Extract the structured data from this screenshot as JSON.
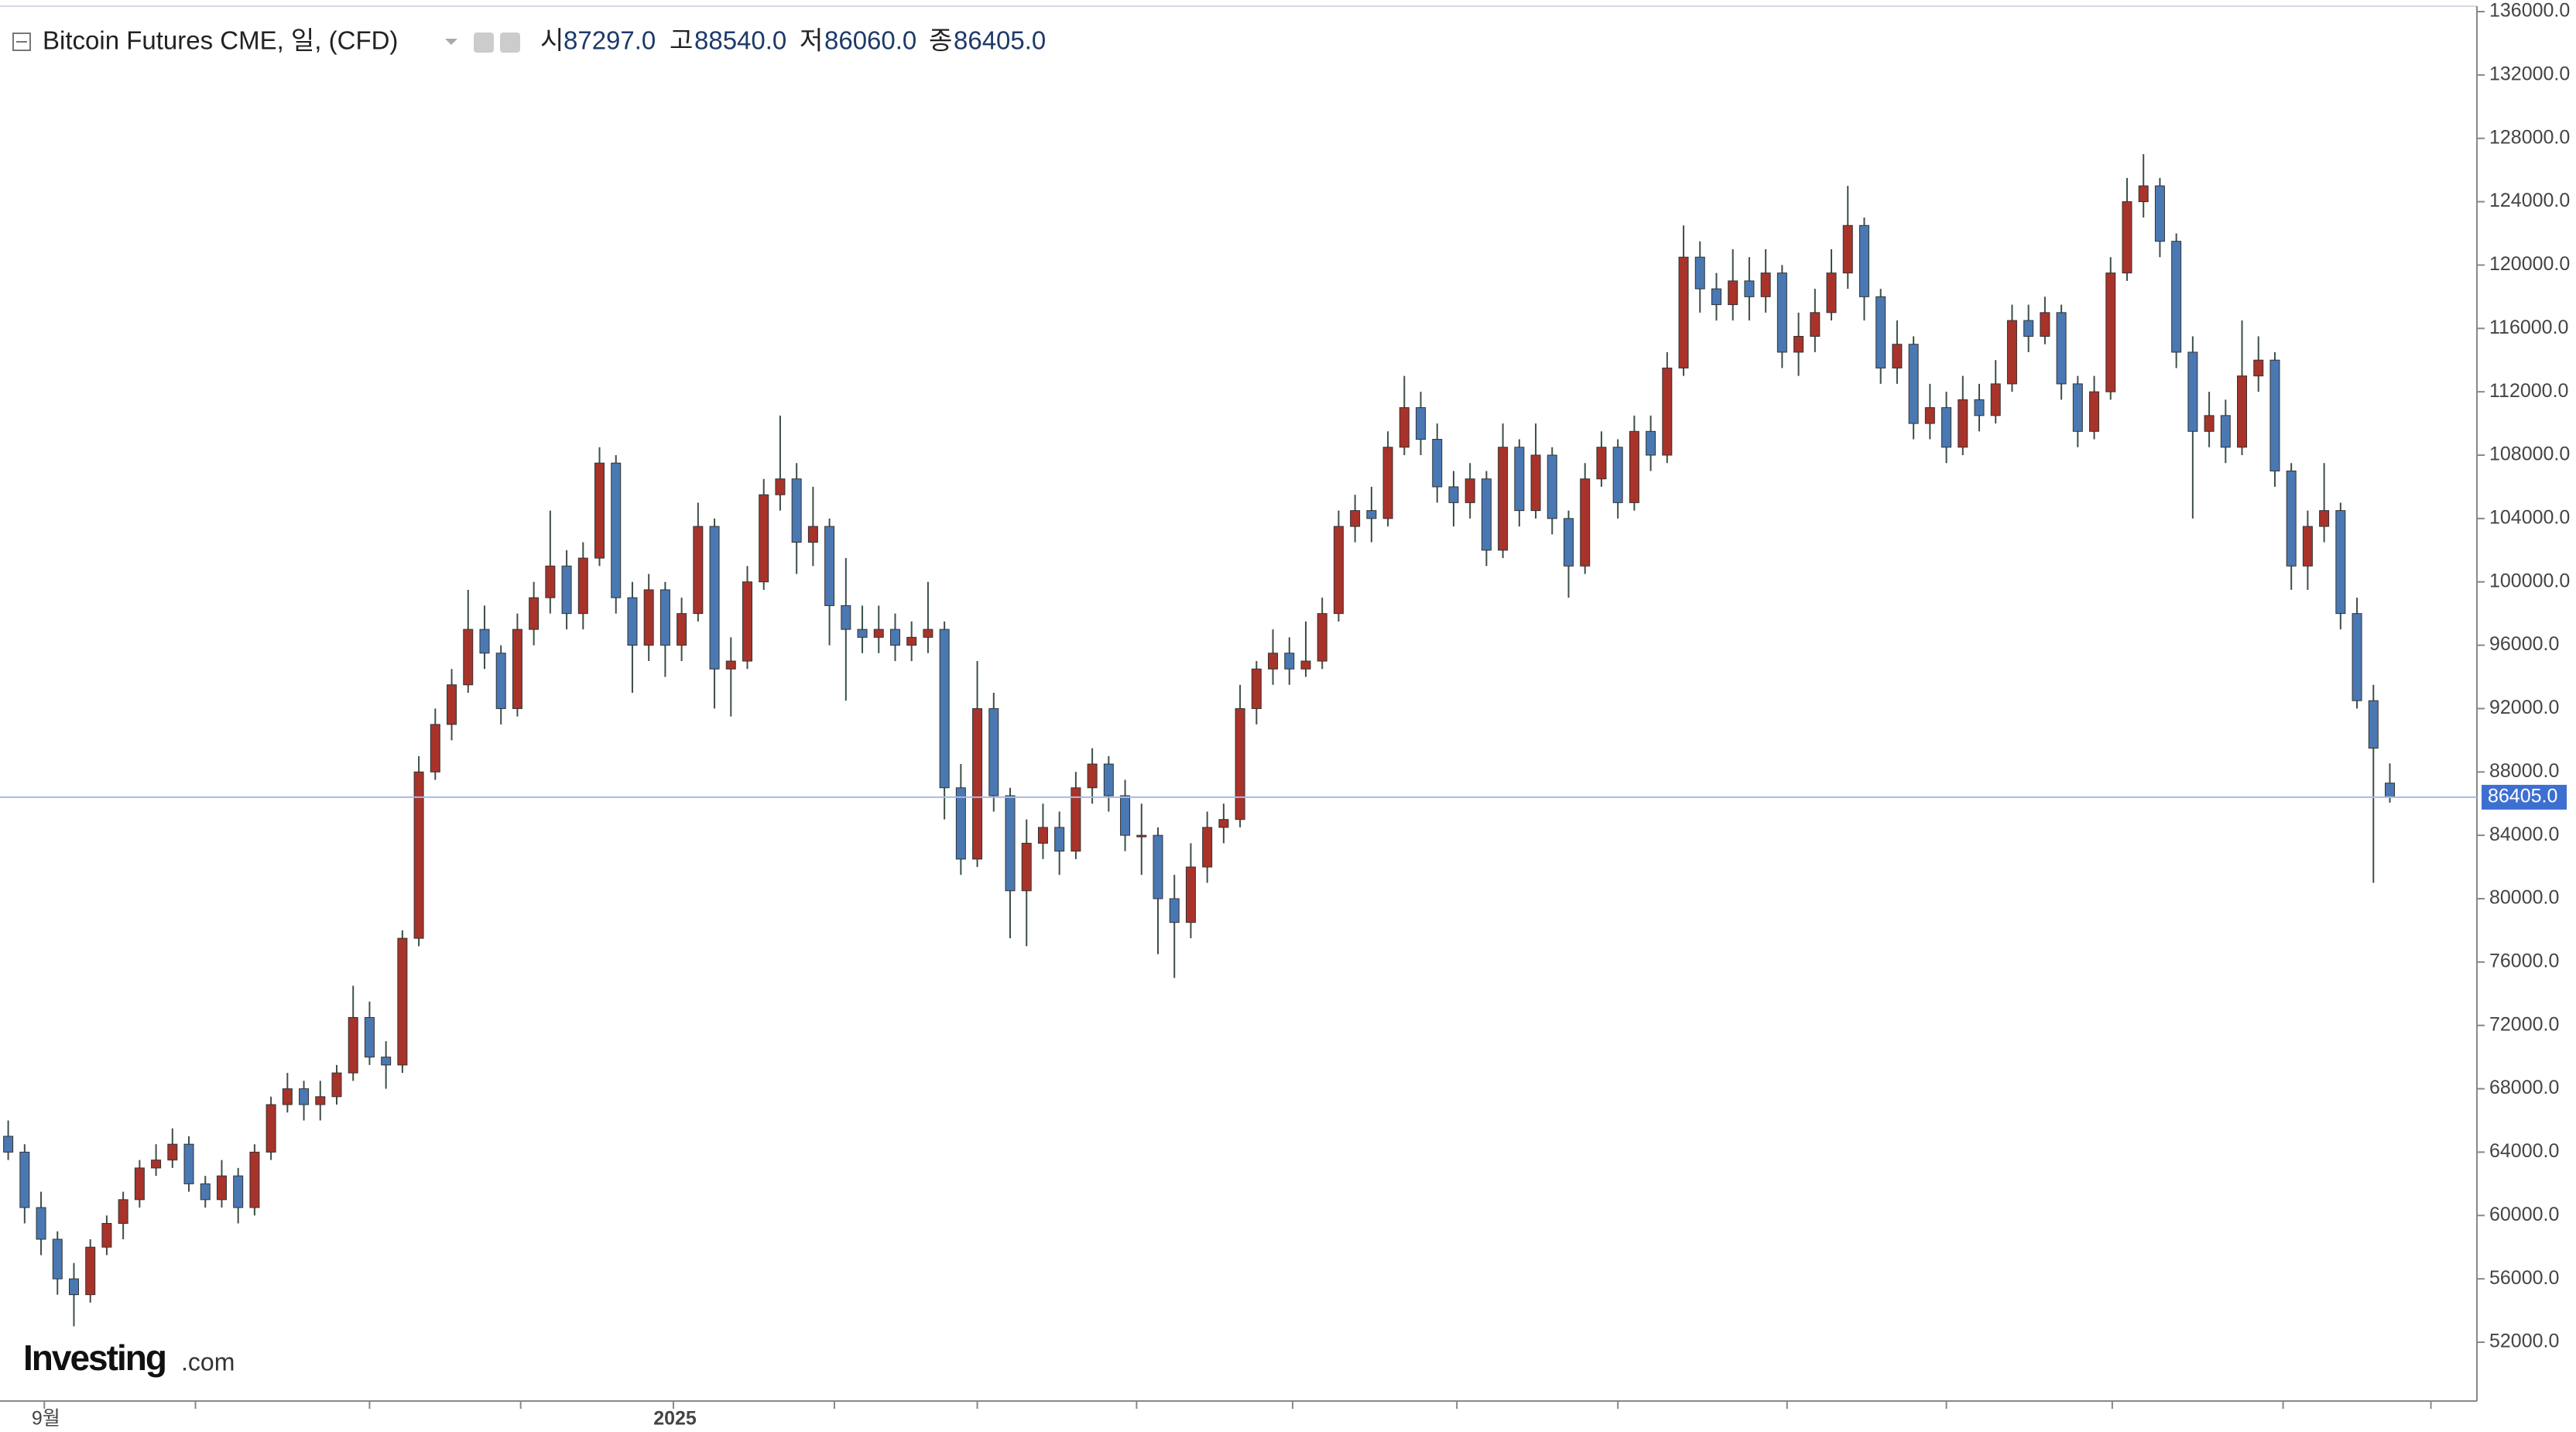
{
  "header": {
    "title": "Bitcoin Futures CME, 일, (CFD)",
    "open_label": "시",
    "open": "87297.0",
    "high_label": "고",
    "high": "88540.0",
    "low_label": "저",
    "low": "86060.0",
    "close_label": "종",
    "close": "86405.0"
  },
  "logo": {
    "brand": "Investing",
    "suffix": ".com"
  },
  "chart_data": {
    "type": "candlestick",
    "up_color": "#a8332a",
    "down_color": "#4a78b2",
    "wick_color": "#3d4f46",
    "grid": false,
    "ylim": [
      52000,
      136000
    ],
    "yticks": [
      {
        "value": 52000,
        "label": "52000.0"
      },
      {
        "value": 56000,
        "label": "56000.0"
      },
      {
        "value": 60000,
        "label": "60000.0"
      },
      {
        "value": 64000,
        "label": "64000.0"
      },
      {
        "value": 68000,
        "label": "68000.0"
      },
      {
        "value": 72000,
        "label": "72000.0"
      },
      {
        "value": 76000,
        "label": "76000.0"
      },
      {
        "value": 80000,
        "label": "80000.0"
      },
      {
        "value": 84000,
        "label": "84000.0"
      },
      {
        "value": 88000,
        "label": "88000.0"
      },
      {
        "value": 92000,
        "label": "92000.0"
      },
      {
        "value": 96000,
        "label": "96000.0"
      },
      {
        "value": 100000,
        "label": "100000.0"
      },
      {
        "value": 104000,
        "label": "104000.0"
      },
      {
        "value": 108000,
        "label": "108000.0"
      },
      {
        "value": 112000,
        "label": "112000.0"
      },
      {
        "value": 116000,
        "label": "116000.0"
      },
      {
        "value": 120000,
        "label": "120000.0"
      },
      {
        "value": 124000,
        "label": "124000.0"
      },
      {
        "value": 128000,
        "label": "128000.0"
      },
      {
        "value": 132000,
        "label": "132000.0"
      },
      {
        "value": 136000,
        "label": "136000.0"
      }
    ],
    "xticks": [
      {
        "value": 2.2,
        "label": "9월"
      },
      {
        "value": 11.4
      },
      {
        "value": 22
      },
      {
        "value": 31.2
      },
      {
        "value": 40.5,
        "label": "2025"
      },
      {
        "value": 50.3
      },
      {
        "value": 59
      },
      {
        "value": 68.7
      },
      {
        "value": 78.2
      },
      {
        "value": 88.2
      },
      {
        "value": 98
      },
      {
        "value": 108.3
      },
      {
        "value": 118
      },
      {
        "value": 128.1
      },
      {
        "value": 138.5
      },
      {
        "value": 147.5
      }
    ],
    "last_price": {
      "value": 86405,
      "label": "86405.0",
      "color": "#3d6fd0"
    },
    "ohlc": [
      [
        65000,
        66000,
        63500,
        64000
      ],
      [
        64000,
        64500,
        59500,
        60500
      ],
      [
        60500,
        61500,
        57500,
        58500
      ],
      [
        58500,
        59000,
        55000,
        56000
      ],
      [
        56000,
        57000,
        53000,
        55000
      ],
      [
        55000,
        58500,
        54500,
        58000
      ],
      [
        58000,
        60000,
        57500,
        59500
      ],
      [
        59500,
        61500,
        58500,
        61000
      ],
      [
        61000,
        63500,
        60500,
        63000
      ],
      [
        63000,
        64500,
        62500,
        63500
      ],
      [
        63500,
        65500,
        63000,
        64500
      ],
      [
        64500,
        65000,
        61500,
        62000
      ],
      [
        62000,
        62500,
        60500,
        61000
      ],
      [
        61000,
        63500,
        60500,
        62500
      ],
      [
        62500,
        63000,
        59500,
        60500
      ],
      [
        60500,
        64500,
        60000,
        64000
      ],
      [
        64000,
        67500,
        63500,
        67000
      ],
      [
        67000,
        69000,
        66500,
        68000
      ],
      [
        68000,
        68500,
        66000,
        67000
      ],
      [
        67000,
        68500,
        66000,
        67500
      ],
      [
        67500,
        69500,
        67000,
        69000
      ],
      [
        69000,
        74500,
        68500,
        72500
      ],
      [
        72500,
        73500,
        69500,
        70000
      ],
      [
        70000,
        71000,
        68000,
        69500
      ],
      [
        69500,
        78000,
        69000,
        77500
      ],
      [
        77500,
        89000,
        77000,
        88000
      ],
      [
        88000,
        92000,
        87500,
        91000
      ],
      [
        91000,
        94500,
        90000,
        93500
      ],
      [
        93500,
        99500,
        93000,
        97000
      ],
      [
        97000,
        98500,
        94500,
        95500
      ],
      [
        95500,
        96000,
        91000,
        92000
      ],
      [
        92000,
        98000,
        91500,
        97000
      ],
      [
        97000,
        100000,
        96000,
        99000
      ],
      [
        99000,
        104500,
        98000,
        101000
      ],
      [
        101000,
        102000,
        97000,
        98000
      ],
      [
        98000,
        102500,
        97000,
        101500
      ],
      [
        101500,
        108500,
        101000,
        107500
      ],
      [
        107500,
        108000,
        98000,
        99000
      ],
      [
        99000,
        100000,
        93000,
        96000
      ],
      [
        96000,
        100500,
        95000,
        99500
      ],
      [
        99500,
        100000,
        94000,
        96000
      ],
      [
        96000,
        99000,
        95000,
        98000
      ],
      [
        98000,
        105000,
        97500,
        103500
      ],
      [
        103500,
        104000,
        92000,
        94500
      ],
      [
        94500,
        96500,
        91500,
        95000
      ],
      [
        95000,
        101000,
        94500,
        100000
      ],
      [
        100000,
        106500,
        99500,
        105500
      ],
      [
        105500,
        110500,
        104500,
        106500
      ],
      [
        106500,
        107500,
        100500,
        102500
      ],
      [
        102500,
        106000,
        101000,
        103500
      ],
      [
        103500,
        104000,
        96000,
        98500
      ],
      [
        98500,
        101500,
        92500,
        97000
      ],
      [
        97000,
        98500,
        95500,
        96500
      ],
      [
        96500,
        98500,
        95500,
        97000
      ],
      [
        97000,
        98000,
        95000,
        96000
      ],
      [
        96000,
        97500,
        95000,
        96500
      ],
      [
        96500,
        100000,
        95500,
        97000
      ],
      [
        97000,
        97500,
        85000,
        87000
      ],
      [
        87000,
        88500,
        81500,
        82500
      ],
      [
        82500,
        95000,
        82000,
        92000
      ],
      [
        92000,
        93000,
        85500,
        86500
      ],
      [
        86500,
        87000,
        77500,
        80500
      ],
      [
        80500,
        85000,
        77000,
        83500
      ],
      [
        83500,
        86000,
        82500,
        84500
      ],
      [
        84500,
        85500,
        81500,
        83000
      ],
      [
        83000,
        88000,
        82500,
        87000
      ],
      [
        87000,
        89500,
        86000,
        88500
      ],
      [
        88500,
        89000,
        85500,
        86500
      ],
      [
        86500,
        87500,
        83000,
        84000
      ],
      [
        84000,
        86000,
        81500,
        84000
      ],
      [
        84000,
        84500,
        76500,
        80000
      ],
      [
        80000,
        81500,
        75000,
        78500
      ],
      [
        78500,
        83500,
        77500,
        82000
      ],
      [
        82000,
        85500,
        81000,
        84500
      ],
      [
        84500,
        86000,
        83500,
        85000
      ],
      [
        85000,
        93500,
        84500,
        92000
      ],
      [
        92000,
        95000,
        91000,
        94500
      ],
      [
        94500,
        97000,
        93500,
        95500
      ],
      [
        95500,
        96500,
        93500,
        94500
      ],
      [
        94500,
        97500,
        94000,
        95000
      ],
      [
        95000,
        99000,
        94500,
        98000
      ],
      [
        98000,
        104500,
        97500,
        103500
      ],
      [
        103500,
        105500,
        102500,
        104500
      ],
      [
        104500,
        106000,
        102500,
        104000
      ],
      [
        104000,
        109500,
        103500,
        108500
      ],
      [
        108500,
        113000,
        108000,
        111000
      ],
      [
        111000,
        112000,
        108000,
        109000
      ],
      [
        109000,
        110000,
        105000,
        106000
      ],
      [
        106000,
        107000,
        103500,
        105000
      ],
      [
        105000,
        107500,
        104000,
        106500
      ],
      [
        106500,
        107000,
        101000,
        102000
      ],
      [
        102000,
        110000,
        101500,
        108500
      ],
      [
        108500,
        109000,
        103500,
        104500
      ],
      [
        104500,
        110000,
        104000,
        108000
      ],
      [
        108000,
        108500,
        103000,
        104000
      ],
      [
        104000,
        104500,
        99000,
        101000
      ],
      [
        101000,
        107500,
        100500,
        106500
      ],
      [
        106500,
        109500,
        106000,
        108500
      ],
      [
        108500,
        109000,
        104000,
        105000
      ],
      [
        105000,
        110500,
        104500,
        109500
      ],
      [
        109500,
        110500,
        107000,
        108000
      ],
      [
        108000,
        114500,
        107500,
        113500
      ],
      [
        113500,
        122500,
        113000,
        120500
      ],
      [
        120500,
        121500,
        117000,
        118500
      ],
      [
        118500,
        119500,
        116500,
        117500
      ],
      [
        117500,
        121000,
        116500,
        119000
      ],
      [
        119000,
        120500,
        116500,
        118000
      ],
      [
        118000,
        121000,
        117000,
        119500
      ],
      [
        119500,
        120000,
        113500,
        114500
      ],
      [
        114500,
        117000,
        113000,
        115500
      ],
      [
        115500,
        118500,
        114500,
        117000
      ],
      [
        117000,
        121000,
        116500,
        119500
      ],
      [
        119500,
        125000,
        118500,
        122500
      ],
      [
        122500,
        123000,
        116500,
        118000
      ],
      [
        118000,
        118500,
        112500,
        113500
      ],
      [
        113500,
        116500,
        112500,
        115000
      ],
      [
        115000,
        115500,
        109000,
        110000
      ],
      [
        110000,
        112500,
        109000,
        111000
      ],
      [
        111000,
        112000,
        107500,
        108500
      ],
      [
        108500,
        113000,
        108000,
        111500
      ],
      [
        111500,
        112500,
        109500,
        110500
      ],
      [
        110500,
        114000,
        110000,
        112500
      ],
      [
        112500,
        117500,
        112000,
        116500
      ],
      [
        116500,
        117500,
        114500,
        115500
      ],
      [
        115500,
        118000,
        115000,
        117000
      ],
      [
        117000,
        117500,
        111500,
        112500
      ],
      [
        112500,
        113000,
        108500,
        109500
      ],
      [
        109500,
        113000,
        109000,
        112000
      ],
      [
        112000,
        120500,
        111500,
        119500
      ],
      [
        119500,
        125500,
        119000,
        124000
      ],
      [
        124000,
        127000,
        123000,
        125000
      ],
      [
        125000,
        125500,
        120500,
        121500
      ],
      [
        121500,
        122000,
        113500,
        114500
      ],
      [
        114500,
        115500,
        104000,
        109500
      ],
      [
        109500,
        112000,
        108500,
        110500
      ],
      [
        110500,
        111500,
        107500,
        108500
      ],
      [
        108500,
        116500,
        108000,
        113000
      ],
      [
        113000,
        115500,
        112000,
        114000
      ],
      [
        114000,
        114500,
        106000,
        107000
      ],
      [
        107000,
        107500,
        99500,
        101000
      ],
      [
        101000,
        104500,
        99500,
        103500
      ],
      [
        103500,
        107500,
        102500,
        104500
      ],
      [
        104500,
        105000,
        97000,
        98000
      ],
      [
        98000,
        99000,
        92000,
        92500
      ],
      [
        92500,
        93500,
        81000,
        89500
      ],
      [
        87297,
        88540,
        86060,
        86405
      ]
    ]
  }
}
